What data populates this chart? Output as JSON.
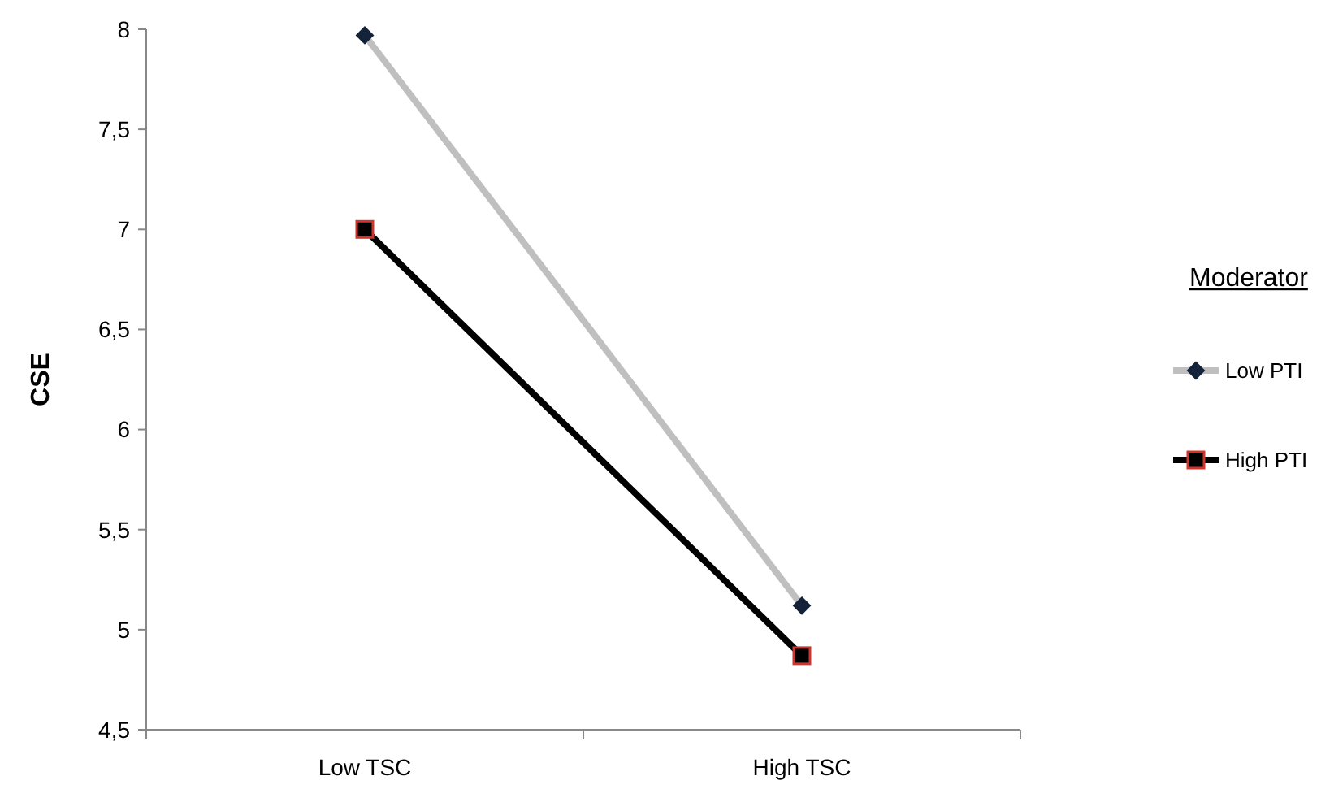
{
  "chart_data": {
    "type": "line",
    "ylabel": "CSE",
    "legend_title": "Moderator",
    "legend": "right",
    "categories": [
      "Low TSC",
      "High TSC"
    ],
    "ylim": [
      4.5,
      8
    ],
    "yticks": [
      {
        "value": 4.5,
        "label": "4,5"
      },
      5,
      {
        "value": 5.5,
        "label": "5,5"
      },
      6,
      {
        "value": 6.5,
        "label": "6,5"
      },
      7,
      {
        "value": 7.5,
        "label": "7,5"
      },
      8
    ],
    "grid": false,
    "series": [
      {
        "name": "Low PTI",
        "color": "#bfbfbf",
        "marker": "diamond",
        "values": [
          7.97,
          5.12
        ]
      },
      {
        "name": "High PTI",
        "color": "#000000",
        "marker": "square",
        "values": [
          7.0,
          4.87
        ]
      }
    ]
  }
}
